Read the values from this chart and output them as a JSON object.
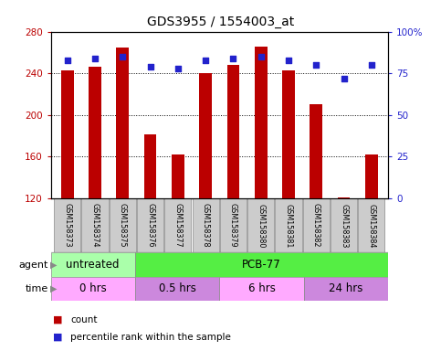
{
  "title": "GDS3955 / 1554003_at",
  "samples": [
    "GSM158373",
    "GSM158374",
    "GSM158375",
    "GSM158376",
    "GSM158377",
    "GSM158378",
    "GSM158379",
    "GSM158380",
    "GSM158381",
    "GSM158382",
    "GSM158383",
    "GSM158384"
  ],
  "counts": [
    243,
    246,
    265,
    181,
    162,
    240,
    248,
    266,
    243,
    210,
    121,
    162
  ],
  "percentiles": [
    83,
    84,
    85,
    79,
    78,
    83,
    84,
    85,
    83,
    80,
    72,
    80
  ],
  "ymin": 120,
  "ymax": 280,
  "yticks": [
    120,
    160,
    200,
    240,
    280
  ],
  "y2ticks": [
    0,
    25,
    50,
    75,
    100
  ],
  "y2labels": [
    "0",
    "25",
    "50",
    "75",
    "100%"
  ],
  "bar_color": "#BB0000",
  "dot_color": "#2222CC",
  "grid_linestyle": "dotted",
  "agent_groups": [
    {
      "label": "untreated",
      "start": 0,
      "end": 3,
      "color": "#AAFFAA"
    },
    {
      "label": "PCB-77",
      "start": 3,
      "end": 12,
      "color": "#55EE44"
    }
  ],
  "time_groups": [
    {
      "label": "0 hrs",
      "start": 0,
      "end": 3,
      "color": "#FFAAFF"
    },
    {
      "label": "0.5 hrs",
      "start": 3,
      "end": 6,
      "color": "#CC88DD"
    },
    {
      "label": "6 hrs",
      "start": 6,
      "end": 9,
      "color": "#FFAAFF"
    },
    {
      "label": "24 hrs",
      "start": 9,
      "end": 12,
      "color": "#CC88DD"
    }
  ],
  "legend_count_color": "#BB0000",
  "legend_dot_color": "#2222CC",
  "axis_color_left": "#BB0000",
  "axis_color_right": "#2222CC",
  "sample_box_color": "#CCCCCC",
  "bar_width": 0.45,
  "dot_size": 20
}
